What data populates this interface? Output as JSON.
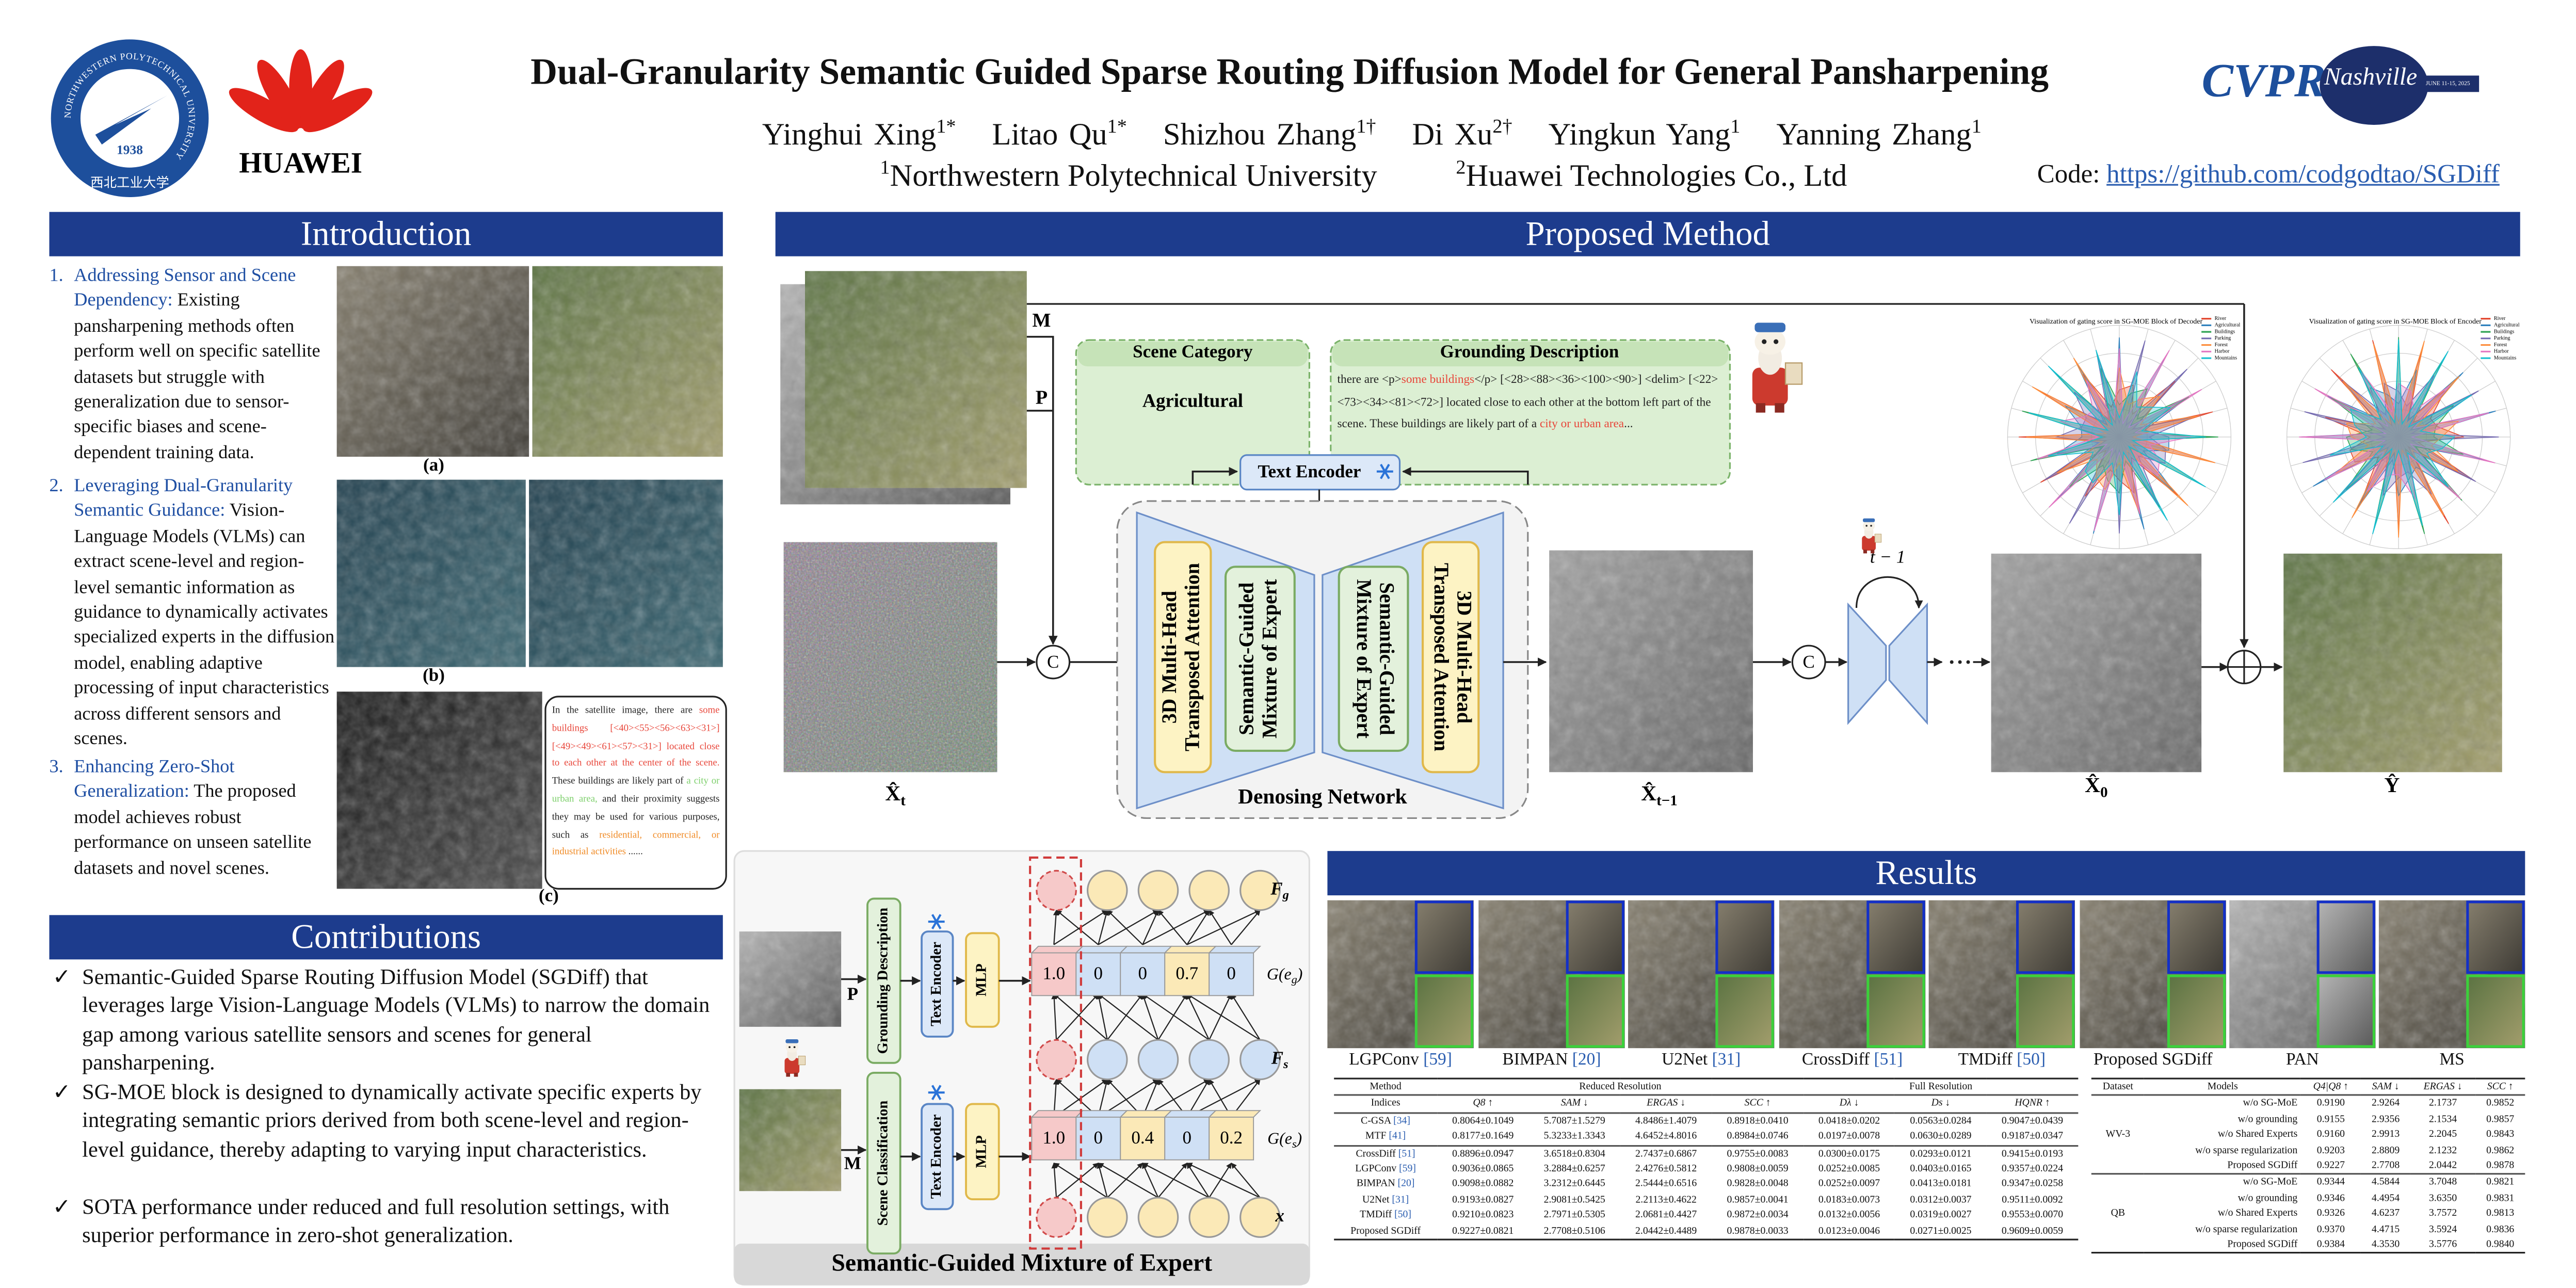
{
  "header": {
    "logos": {
      "nwpu_ring": "NORTHWESTERN POLYTECHNICAL UNIVERSITY",
      "nwpu_year": "1938",
      "nwpu_chinese": "西北工业大学",
      "huawei": "HUAWEI",
      "cvpr": "CVPR",
      "cvpr_city": "Nashville",
      "cvpr_dates": "JUNE 11-15, 2025"
    },
    "title": "Dual-Granularity Semantic Guided Sparse Routing Diffusion Model for General Pansharpening",
    "authors": [
      {
        "name": "Yinghui Xing",
        "sup": "1*"
      },
      {
        "name": "Litao Qu",
        "sup": "1*"
      },
      {
        "name": "Shizhou Zhang",
        "sup": "1†"
      },
      {
        "name": "Di Xu",
        "sup": "2†"
      },
      {
        "name": "Yingkun Yang",
        "sup": "1"
      },
      {
        "name": "Yanning Zhang",
        "sup": "1"
      }
    ],
    "affiliations": [
      {
        "sup": "1",
        "name": "Northwestern Polytechnical University"
      },
      {
        "sup": "2",
        "name": "Huawei Technologies Co., Ltd"
      }
    ],
    "code": {
      "label": "Code:",
      "url": "https://github.com/codgodtao/SGDiff"
    }
  },
  "introduction": {
    "title": "Introduction",
    "items": [
      {
        "number": "1.",
        "lead": "Addressing Sensor and Scene Dependency:",
        "text": "Existing pansharpening methods often perform well on specific satellite datasets but struggle with generalization due to sensor-specific biases and scene-dependent training data."
      },
      {
        "number": "2.",
        "lead": "Leveraging Dual-Granularity Semantic Guidance:",
        "text": "Vision-Language Models (VLMs) can extract scene-level and region-level semantic information as guidance to dynamically activates specialized experts in the diffusion model, enabling adaptive processing of input characteristics across different sensors and scenes."
      },
      {
        "number": "3.",
        "lead": "Enhancing Zero-Shot Generalization:",
        "text": "The proposed model achieves robust performance on unseen satellite datasets and novel scenes."
      }
    ],
    "figure_labels": [
      "(a)",
      "(b)",
      "(c)"
    ],
    "caption_segments": [
      {
        "text": "In the satellite image, there are ",
        "color": "#222222"
      },
      {
        "text": "some buildings [<40><55><56><63><31>] [<49><49><61><57><31>] located close to each other at the center of the scene.",
        "color": "#e8463a"
      },
      {
        "text": " These buildings are likely part of ",
        "color": "#222222"
      },
      {
        "text": "a city or urban area,",
        "color": "#7ccf6a"
      },
      {
        "text": " and their proximity suggests they may be used for various purposes, such as ",
        "color": "#222222"
      },
      {
        "text": "residential, commercial, or industrial activities",
        "color": "#f08a24"
      },
      {
        "text": " ......",
        "color": "#222222"
      }
    ]
  },
  "contributions": {
    "title": "Contributions",
    "marker": "✓",
    "items": [
      "Semantic-Guided Sparse Routing Diffusion Model (SGDiff) that leverages large Vision-Language Models (VLMs) to narrow the domain gap among various satellite sensors and scenes for general pansharpening.",
      "SG-MOE block is designed to dynamically activate specific experts by integrating semantic priors derived from both scene-level and region-level guidance, thereby adapting to varying input characteristics.",
      "SOTA performance under reduced and full resolution settings, with superior performance in zero-shot generalization."
    ]
  },
  "method": {
    "title": "Proposed Method",
    "inputs": [
      "M",
      "P"
    ],
    "scene_category": {
      "title": "Scene Category",
      "value": "Agricultural"
    },
    "grounding": {
      "title": "Grounding Description",
      "segments": [
        {
          "text": "there are <p>",
          "color": "#222222"
        },
        {
          "text": "some buildings",
          "color": "#e8463a"
        },
        {
          "text": "</p> [<28><88><36><100><90>] <delim> [<22><73><34><81><72>]  located close to each other at the bottom left part of the scene. These buildings are likely part of a ",
          "color": "#222222"
        },
        {
          "text": "city or urban area",
          "color": "#e8463a"
        },
        {
          "text": "...",
          "color": "#222222"
        }
      ]
    },
    "text_encoder": "Text Encoder",
    "concat": "C",
    "attention": [
      "3D Multi-Head",
      "Transposed Attention"
    ],
    "moe": [
      "Semantic-Guided",
      "Mixture of Expert"
    ],
    "network": "Denosing Network",
    "step": "t − 1",
    "images": [
      {
        "base": "X̂",
        "sub": "t"
      },
      {
        "base": "X̂",
        "sub": "t−1"
      },
      {
        "base": "X̂",
        "sub": "0"
      },
      {
        "base": "Ŷ"
      }
    ],
    "radar_titles": [
      "Visualization of gating score in SG-MOE Block of Decoder",
      "Visualization of gating score in SG-MOE Block of Encoder"
    ],
    "radar_legend": [
      "River",
      "Agricultural",
      "Buildings",
      "Parking",
      "Forest",
      "Harbor",
      "Mountains"
    ]
  },
  "moe": {
    "title": "Semantic-Guided Mixture of Expert",
    "inputs": [
      "P",
      "M"
    ],
    "grounding": "Grounding Description",
    "scene": "Scene Classification",
    "text_encoder": "Text Encoder",
    "mlp": "MLP",
    "gate_g": [
      "1.0",
      "0",
      "0",
      "0.7",
      "0"
    ],
    "gate_s": [
      "1.0",
      "0",
      "0.4",
      "0",
      "0.2"
    ],
    "labels": {
      "fg": {
        "base": "F",
        "sub": "g"
      },
      "ge_g": {
        "base": "G(e",
        "sub": "g",
        "end": ")"
      },
      "fs": {
        "base": "F",
        "sub": "s"
      },
      "ge_s": {
        "base": "G(e",
        "sub": "s",
        "end": ")"
      },
      "x": {
        "base": "x"
      }
    }
  },
  "results": {
    "title": "Results",
    "methods": [
      {
        "name": "LGPConv",
        "ref": "[59]"
      },
      {
        "name": "BIMPAN",
        "ref": "[20]"
      },
      {
        "name": "U2Net",
        "ref": "[31]"
      },
      {
        "name": "CrossDiff",
        "ref": "[51]"
      },
      {
        "name": "TMDiff",
        "ref": "[50]"
      },
      {
        "name": "Proposed SGDiff"
      },
      {
        "name": "PAN"
      },
      {
        "name": "MS"
      }
    ],
    "table_main": {
      "header_top": [
        "Method",
        "Reduced Resolution",
        "Full Resolution"
      ],
      "header": [
        "Indices",
        "Q8 ↑",
        "SAM ↓",
        "ERGAS ↓",
        "SCC ↑",
        "Dλ ↓",
        "Ds ↓",
        "HQNR ↑"
      ],
      "groups": [
        [
          {
            "method": "C-GSA",
            "ref": "[34]",
            "cells": [
              "0.8064±0.1049",
              "5.7087±1.5279",
              "4.8486±1.4079",
              "0.8918±0.0410",
              "0.0418±0.0202",
              "0.0563±0.0284",
              "0.9047±0.0439"
            ]
          },
          {
            "method": "MTF",
            "ref": "[41]",
            "cells": [
              "0.8177±0.1649",
              "5.3233±1.3343",
              "4.6452±4.8016",
              "0.8984±0.0746",
              "0.0197±0.0078",
              "0.0630±0.0289",
              "0.9187±0.0347"
            ]
          }
        ],
        [
          {
            "method": "CrossDiff",
            "ref": "[51]",
            "cells": [
              "0.8896±0.0947",
              "3.6518±0.8304",
              "2.7437±0.6867",
              "0.9755±0.0083",
              "0.0300±0.0175",
              "0.0293±0.0121",
              "0.9415±0.0193"
            ]
          },
          {
            "method": "LGPConv",
            "ref": "[59]",
            "cells": [
              "0.9036±0.0865",
              "3.2884±0.6257",
              "2.4276±0.5812",
              "0.9808±0.0059",
              "0.0252±0.0085",
              "0.0403±0.0165",
              "0.9357±0.0224"
            ]
          },
          {
            "method": "BIMPAN",
            "ref": "[20]",
            "cells": [
              "0.9098±0.0882",
              "3.2312±0.6445",
              "2.5444±0.6516",
              "0.9828±0.0048",
              "0.0252±0.0097",
              "0.0413±0.0181",
              "0.9347±0.0258"
            ]
          },
          {
            "method": "U2Net",
            "ref": "[31]",
            "cells": [
              "0.9193±0.0827",
              "2.9081±0.5425",
              "2.2113±0.4622",
              "0.9857±0.0041",
              "0.0183±0.0073",
              "0.0312±0.0037",
              "0.9511±0.0092"
            ]
          },
          {
            "method": "TMDiff",
            "ref": "[50]",
            "cells": [
              "0.9210±0.0823",
              "2.7971±0.5305",
              "2.0681±0.4427",
              "0.9872±0.0034",
              "0.0132±0.0056",
              "0.0319±0.0027",
              "0.9553±0.0070"
            ]
          },
          {
            "method": "Proposed SGDiff",
            "bold": true,
            "cells": [
              "0.9227±0.0821",
              "2.7708±0.5106",
              "2.0442±0.4489",
              "0.9878±0.0033",
              "0.0123±0.0046",
              "0.0271±0.0025",
              "0.9609±0.0059"
            ]
          }
        ]
      ]
    },
    "table_ablation": {
      "header": [
        "Dataset",
        "Models",
        "Q4|Q8 ↑",
        "SAM ↓",
        "ERGAS ↓",
        "SCC ↑"
      ],
      "groups": [
        {
          "dataset": "WV-3",
          "rows": [
            {
              "cells": [
                "w/o SG-MoE",
                "0.9190",
                "2.9264",
                "2.1737",
                "0.9852"
              ]
            },
            {
              "cells": [
                "w/o grounding",
                "0.9155",
                "2.9356",
                "2.1534",
                "0.9857"
              ]
            },
            {
              "cells": [
                "w/o Shared Experts",
                "0.9160",
                "2.9913",
                "2.2045",
                "0.9843"
              ]
            },
            {
              "cells": [
                "w/o sparse regularization",
                "0.9203",
                "2.8809",
                "2.1232",
                "0.9862"
              ]
            },
            {
              "cells": [
                "Proposed SGDiff",
                "0.9227",
                "2.7708",
                "2.0442",
                "0.9878"
              ],
              "bold": true
            }
          ]
        },
        {
          "dataset": "QB",
          "rows": [
            {
              "cells": [
                "w/o SG-MoE",
                "0.9344",
                "4.5844",
                "3.7048",
                "0.9821"
              ]
            },
            {
              "cells": [
                "w/o grounding",
                "0.9346",
                "4.4954",
                "3.6350",
                "0.9831"
              ]
            },
            {
              "cells": [
                "w/o Shared Experts",
                "0.9326",
                "4.6237",
                "3.7572",
                "0.9813"
              ]
            },
            {
              "cells": [
                "w/o sparse regularization",
                "0.9370",
                "4.4715",
                "3.5924",
                "0.9836"
              ]
            },
            {
              "cells": [
                "Proposed SGDiff",
                "0.9384",
                "4.3530",
                "3.5776",
                "0.9840"
              ],
              "bold": true
            }
          ]
        }
      ]
    }
  }
}
